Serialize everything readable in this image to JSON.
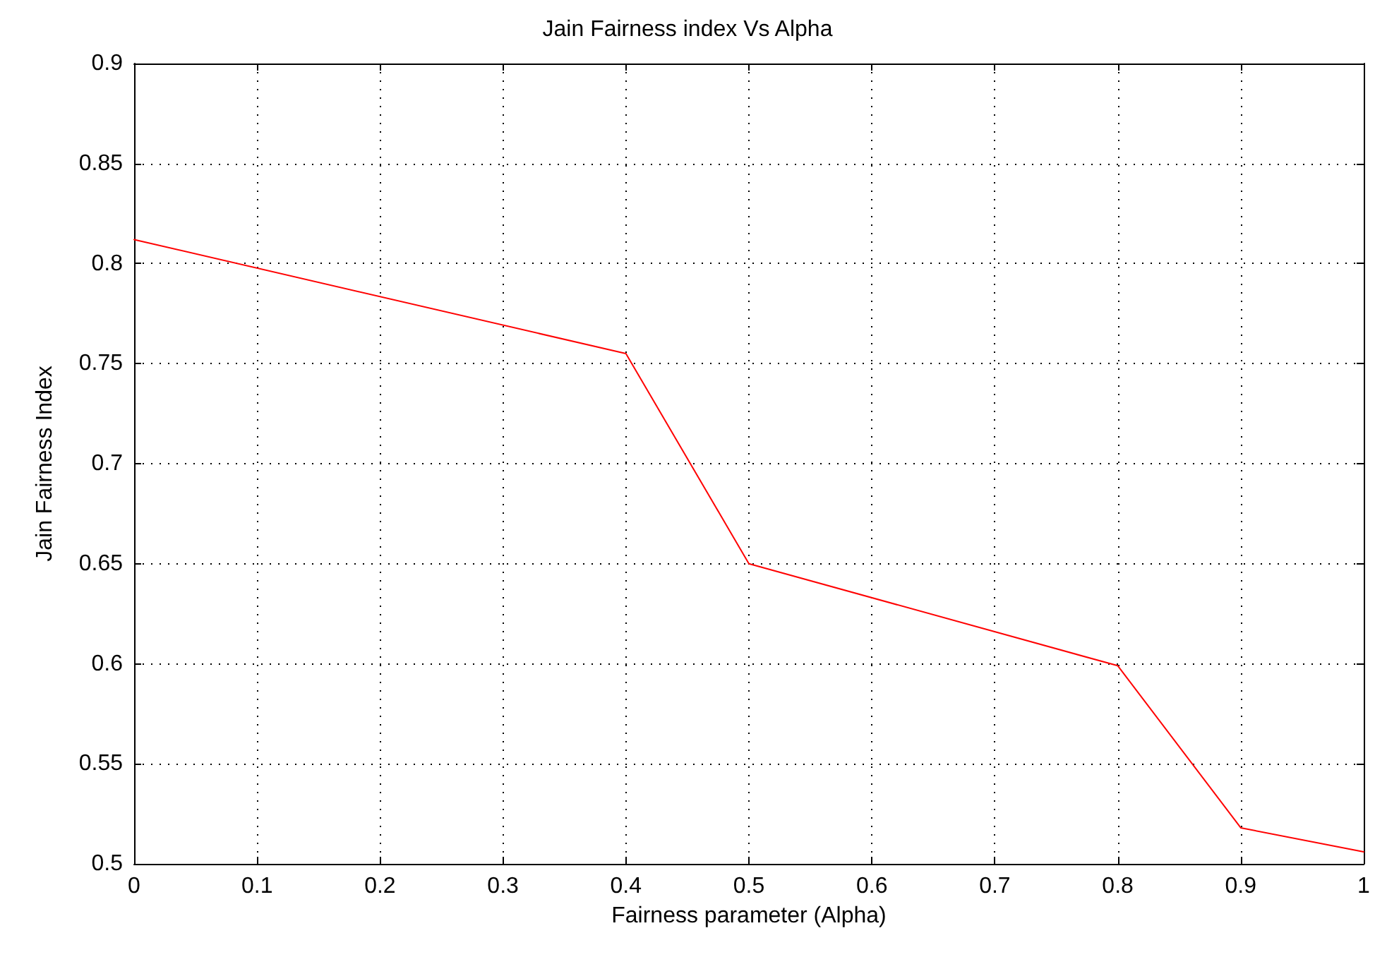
{
  "chart_data": {
    "type": "line",
    "title": "Jain Fairness index Vs Alpha",
    "xlabel": "Fairness parameter (Alpha)",
    "ylabel": "Jain Fairness Index",
    "x": [
      0,
      0.4,
      0.5,
      0.8,
      0.9,
      1
    ],
    "series": [
      {
        "color": "#ff0000",
        "values": [
          0.812,
          0.755,
          0.65,
          0.599,
          0.518,
          0.506
        ]
      }
    ],
    "xlim": [
      0,
      1
    ],
    "xticks": [
      0,
      0.1,
      0.2,
      0.3,
      0.4,
      0.5,
      0.6,
      0.7,
      0.8,
      0.9,
      1
    ],
    "ylim": [
      0.5,
      0.9
    ],
    "yticks": [
      0.5,
      0.55,
      0.6,
      0.65,
      0.7,
      0.75,
      0.8,
      0.85,
      0.9
    ],
    "grid": true,
    "marker": "none",
    "line_style": "solid"
  }
}
